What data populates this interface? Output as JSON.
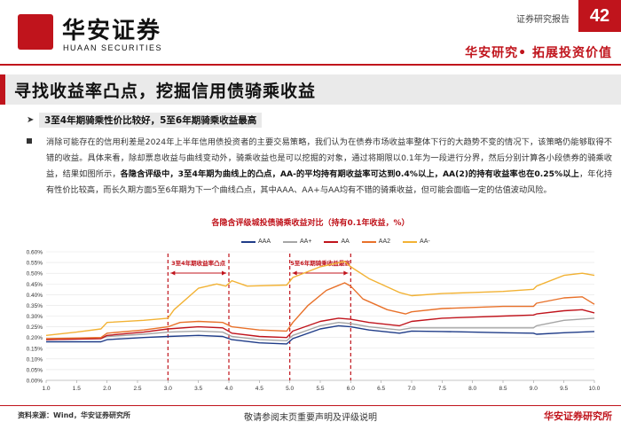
{
  "header": {
    "logo_cn": "华安证券",
    "logo_en": "HUAAN SECURITIES",
    "report_type": "证券研究报告",
    "page_number": "42",
    "slogan": "华安研究• 拓展投资价值",
    "brand_color": "#c0141c"
  },
  "section": {
    "title": "寻找收益率凸点，挖掘信用债骑乘收益"
  },
  "bullets": {
    "highlight": "3至4年期骑乘性价比较好，5至6年期骑乘收益最高",
    "para_1": "消除可能存在的信用利差是2024年上半年信用债投资者的主要交易策略，我们认为在债券市场收益率整体下行的大趋势不变的情况下，该策略仍能够取得不错的收益。具体来看，除却票息收益与曲线变动外，骑乘收益也是可以挖掘的对象，通过将期限以0.1年为一段进行分界，然后分别计算各小段债券的骑乘收益，结果如图所示，",
    "para_bold": "各隐含评级中，3至4年期为曲线上的凸点，AA-的平均持有期收益率可达到0.4%以上，AA(2)的持有收益率也在0.25%以上",
    "para_2": "，年化持有性价比较高，而长久期方面5至6年期为下一个曲线凸点，其中AAA、AA+与AA均有不错的骑乘收益，但可能会面临一定的估值波动风险。"
  },
  "footer": {
    "source": "资料来源：Wind，华安证券研究所",
    "disclaimer": "敬请参阅末页重要声明及评级说明",
    "brand": "华安证券研究所"
  },
  "chart_data": {
    "type": "line",
    "title": "各隐含评级城投债骑乘收益对比（持有0.1年收益，%）",
    "xlabel": "",
    "ylabel": "",
    "xlim": [
      1.0,
      10.0
    ],
    "ylim": [
      0.0,
      0.6
    ],
    "x_ticks": [
      "1.0",
      "1.5",
      "2.0",
      "2.5",
      "3.0",
      "3.5",
      "4.0",
      "4.5",
      "5.0",
      "5.5",
      "6.0",
      "6.5",
      "7.0",
      "7.5",
      "8.0",
      "8.5",
      "9.0",
      "9.5",
      "10.0"
    ],
    "y_ticks": [
      "0.00%",
      "0.05%",
      "0.10%",
      "0.15%",
      "0.20%",
      "0.25%",
      "0.30%",
      "0.35%",
      "0.40%",
      "0.45%",
      "0.50%",
      "0.55%",
      "0.60%"
    ],
    "grid": true,
    "legend_position": "top-center",
    "annotations": [
      {
        "label": "3至4年期收益率凸点",
        "x_range": [
          3.0,
          4.0
        ]
      },
      {
        "label": "5至6年期骑乘收益最高",
        "x_range": [
          5.0,
          6.0
        ]
      }
    ],
    "series": [
      {
        "name": "AAA",
        "color": "#1f3c88",
        "points": [
          [
            1.0,
            0.18
          ],
          [
            1.9,
            0.18
          ],
          [
            2.0,
            0.19
          ],
          [
            2.6,
            0.2
          ],
          [
            3.0,
            0.205
          ],
          [
            3.5,
            0.21
          ],
          [
            3.9,
            0.205
          ],
          [
            4.05,
            0.19
          ],
          [
            4.5,
            0.175
          ],
          [
            4.95,
            0.17
          ],
          [
            5.05,
            0.195
          ],
          [
            5.5,
            0.24
          ],
          [
            5.8,
            0.255
          ],
          [
            6.0,
            0.25
          ],
          [
            6.3,
            0.235
          ],
          [
            6.8,
            0.22
          ],
          [
            7.0,
            0.23
          ],
          [
            7.5,
            0.228
          ],
          [
            8.0,
            0.225
          ],
          [
            8.5,
            0.222
          ],
          [
            9.0,
            0.22
          ],
          [
            9.05,
            0.215
          ],
          [
            9.5,
            0.222
          ],
          [
            10.0,
            0.228
          ]
        ]
      },
      {
        "name": "AA+",
        "color": "#a6a6a6",
        "points": [
          [
            1.0,
            0.19
          ],
          [
            1.9,
            0.195
          ],
          [
            2.0,
            0.205
          ],
          [
            2.6,
            0.215
          ],
          [
            3.0,
            0.225
          ],
          [
            3.5,
            0.23
          ],
          [
            3.9,
            0.225
          ],
          [
            4.05,
            0.205
          ],
          [
            4.5,
            0.19
          ],
          [
            4.95,
            0.185
          ],
          [
            5.05,
            0.21
          ],
          [
            5.5,
            0.255
          ],
          [
            5.8,
            0.27
          ],
          [
            6.0,
            0.265
          ],
          [
            6.3,
            0.25
          ],
          [
            6.8,
            0.235
          ],
          [
            7.0,
            0.245
          ],
          [
            7.5,
            0.245
          ],
          [
            8.0,
            0.245
          ],
          [
            8.5,
            0.245
          ],
          [
            9.0,
            0.245
          ],
          [
            9.05,
            0.255
          ],
          [
            9.5,
            0.28
          ],
          [
            10.0,
            0.29
          ]
        ]
      },
      {
        "name": "AA",
        "color": "#c0141c",
        "points": [
          [
            1.0,
            0.19
          ],
          [
            1.9,
            0.195
          ],
          [
            2.0,
            0.21
          ],
          [
            2.6,
            0.225
          ],
          [
            3.0,
            0.24
          ],
          [
            3.5,
            0.25
          ],
          [
            3.9,
            0.245
          ],
          [
            4.05,
            0.22
          ],
          [
            4.5,
            0.205
          ],
          [
            4.95,
            0.2
          ],
          [
            5.05,
            0.23
          ],
          [
            5.5,
            0.275
          ],
          [
            5.8,
            0.29
          ],
          [
            6.0,
            0.285
          ],
          [
            6.3,
            0.27
          ],
          [
            6.8,
            0.255
          ],
          [
            7.0,
            0.275
          ],
          [
            7.5,
            0.29
          ],
          [
            8.0,
            0.295
          ],
          [
            8.5,
            0.3
          ],
          [
            9.0,
            0.305
          ],
          [
            9.05,
            0.31
          ],
          [
            9.5,
            0.325
          ],
          [
            9.8,
            0.33
          ],
          [
            10.0,
            0.315
          ]
        ]
      },
      {
        "name": "AA2",
        "color": "#e8712a",
        "points": [
          [
            1.0,
            0.195
          ],
          [
            1.9,
            0.2
          ],
          [
            2.0,
            0.22
          ],
          [
            2.6,
            0.235
          ],
          [
            3.0,
            0.25
          ],
          [
            3.2,
            0.27
          ],
          [
            3.5,
            0.275
          ],
          [
            3.9,
            0.27
          ],
          [
            4.05,
            0.25
          ],
          [
            4.5,
            0.235
          ],
          [
            4.95,
            0.23
          ],
          [
            5.05,
            0.27
          ],
          [
            5.3,
            0.35
          ],
          [
            5.6,
            0.42
          ],
          [
            5.9,
            0.455
          ],
          [
            6.0,
            0.44
          ],
          [
            6.2,
            0.38
          ],
          [
            6.6,
            0.33
          ],
          [
            6.9,
            0.31
          ],
          [
            7.0,
            0.32
          ],
          [
            7.5,
            0.335
          ],
          [
            8.0,
            0.34
          ],
          [
            8.5,
            0.345
          ],
          [
            9.0,
            0.345
          ],
          [
            9.05,
            0.36
          ],
          [
            9.5,
            0.385
          ],
          [
            9.8,
            0.39
          ],
          [
            10.0,
            0.355
          ]
        ]
      },
      {
        "name": "AA-",
        "color": "#f2b234",
        "points": [
          [
            1.0,
            0.21
          ],
          [
            1.5,
            0.225
          ],
          [
            1.9,
            0.24
          ],
          [
            2.0,
            0.27
          ],
          [
            2.6,
            0.28
          ],
          [
            3.0,
            0.29
          ],
          [
            3.1,
            0.33
          ],
          [
            3.5,
            0.43
          ],
          [
            3.8,
            0.45
          ],
          [
            3.95,
            0.44
          ],
          [
            4.05,
            0.465
          ],
          [
            4.3,
            0.44
          ],
          [
            4.95,
            0.445
          ],
          [
            5.05,
            0.48
          ],
          [
            5.5,
            0.53
          ],
          [
            5.9,
            0.555
          ],
          [
            6.0,
            0.53
          ],
          [
            6.3,
            0.475
          ],
          [
            6.8,
            0.41
          ],
          [
            7.0,
            0.395
          ],
          [
            7.5,
            0.405
          ],
          [
            8.0,
            0.41
          ],
          [
            8.5,
            0.415
          ],
          [
            9.0,
            0.425
          ],
          [
            9.05,
            0.44
          ],
          [
            9.5,
            0.49
          ],
          [
            9.8,
            0.5
          ],
          [
            10.0,
            0.49
          ]
        ]
      }
    ]
  }
}
